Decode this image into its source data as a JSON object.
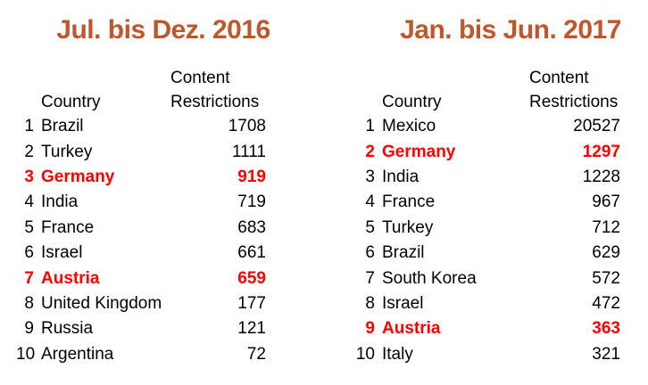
{
  "colors": {
    "title_orange": "#C0572C",
    "highlight_red": "#FF0000",
    "text_black": "#000000",
    "background": "#FFFFFF"
  },
  "tables": [
    {
      "title": "Jul. bis Dez. 2016",
      "header": {
        "country": "Country",
        "value_line1": "Content",
        "value_line2": "Restrictions"
      },
      "rows": [
        {
          "rank": "1",
          "country": "Brazil",
          "value": "1708",
          "highlight": false
        },
        {
          "rank": "2",
          "country": "Turkey",
          "value": "1111",
          "highlight": false
        },
        {
          "rank": "3",
          "country": "Germany",
          "value": "919",
          "highlight": true
        },
        {
          "rank": "4",
          "country": "India",
          "value": "719",
          "highlight": false
        },
        {
          "rank": "5",
          "country": "France",
          "value": "683",
          "highlight": false
        },
        {
          "rank": "6",
          "country": "Israel",
          "value": "661",
          "highlight": false
        },
        {
          "rank": "7",
          "country": "Austria",
          "value": "659",
          "highlight": true
        },
        {
          "rank": "8",
          "country": "United Kingdom",
          "value": "177",
          "highlight": false
        },
        {
          "rank": "9",
          "country": "Russia",
          "value": "121",
          "highlight": false
        },
        {
          "rank": "10",
          "country": "Argentina",
          "value": "72",
          "highlight": false
        }
      ]
    },
    {
      "title": "Jan. bis Jun. 2017",
      "header": {
        "country": "Country",
        "value_line1": "Content",
        "value_line2": "Restrictions"
      },
      "rows": [
        {
          "rank": "1",
          "country": "Mexico",
          "value": "20527",
          "highlight": false
        },
        {
          "rank": "2",
          "country": "Germany",
          "value": "1297",
          "highlight": true
        },
        {
          "rank": "3",
          "country": "India",
          "value": "1228",
          "highlight": false
        },
        {
          "rank": "4",
          "country": "France",
          "value": "967",
          "highlight": false
        },
        {
          "rank": "5",
          "country": "Turkey",
          "value": "712",
          "highlight": false
        },
        {
          "rank": "6",
          "country": "Brazil",
          "value": "629",
          "highlight": false
        },
        {
          "rank": "7",
          "country": "South Korea",
          "value": "572",
          "highlight": false
        },
        {
          "rank": "8",
          "country": "Israel",
          "value": "472",
          "highlight": false
        },
        {
          "rank": "9",
          "country": "Austria",
          "value": "363",
          "highlight": true
        },
        {
          "rank": "10",
          "country": "Italy",
          "value": "321",
          "highlight": false
        }
      ]
    }
  ],
  "chart_data": [
    {
      "type": "table",
      "title": "Jul. bis Dez. 2016",
      "columns": [
        "Rank",
        "Country",
        "Content Restrictions"
      ],
      "rows": [
        [
          1,
          "Brazil",
          1708
        ],
        [
          2,
          "Turkey",
          1111
        ],
        [
          3,
          "Germany",
          919
        ],
        [
          4,
          "India",
          719
        ],
        [
          5,
          "France",
          683
        ],
        [
          6,
          "Israel",
          661
        ],
        [
          7,
          "Austria",
          659
        ],
        [
          8,
          "United Kingdom",
          177
        ],
        [
          9,
          "Russia",
          121
        ],
        [
          10,
          "Argentina",
          72
        ]
      ],
      "highlighted_rows": [
        "Germany",
        "Austria"
      ]
    },
    {
      "type": "table",
      "title": "Jan. bis Jun. 2017",
      "columns": [
        "Rank",
        "Country",
        "Content Restrictions"
      ],
      "rows": [
        [
          1,
          "Mexico",
          20527
        ],
        [
          2,
          "Germany",
          1297
        ],
        [
          3,
          "India",
          1228
        ],
        [
          4,
          "France",
          967
        ],
        [
          5,
          "Turkey",
          712
        ],
        [
          6,
          "Brazil",
          629
        ],
        [
          7,
          "South Korea",
          572
        ],
        [
          8,
          "Israel",
          472
        ],
        [
          9,
          "Austria",
          363
        ],
        [
          10,
          "Italy",
          321
        ]
      ],
      "highlighted_rows": [
        "Germany",
        "Austria"
      ]
    }
  ]
}
